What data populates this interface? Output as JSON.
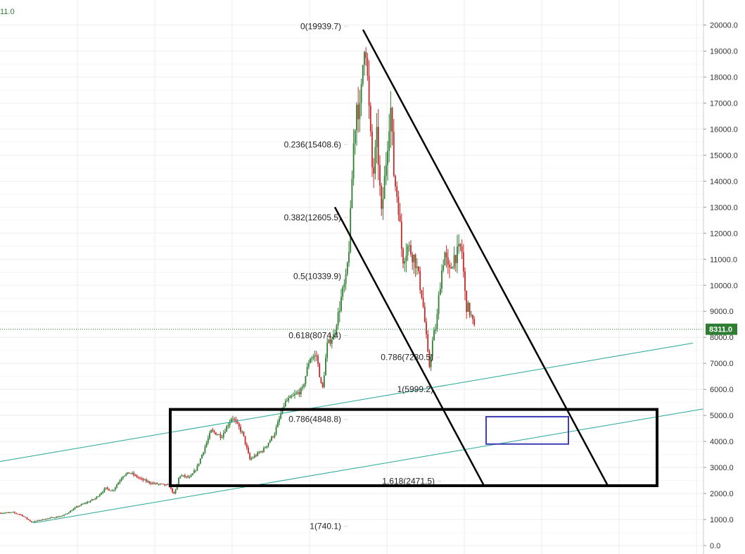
{
  "header": {
    "corner_value": "11.0"
  },
  "chart_data": {
    "type": "candlestick",
    "ylim": [
      0,
      20300
    ],
    "y_ticks": [
      "0.0",
      "1000.0",
      "2000.0",
      "3000.0",
      "4000.0",
      "5000.0",
      "6000.0",
      "7000.0",
      "8000.0",
      "9000.0",
      "10000.0",
      "11000.0",
      "12000.0",
      "13000.0",
      "14000.0",
      "15000.0",
      "16000.0",
      "17000.0",
      "18000.0",
      "19000.0",
      "20000.0"
    ],
    "current_price": {
      "value": 8311,
      "label": "8311.0"
    },
    "fib_levels": [
      {
        "label": "0(19939.7)",
        "price": 19939.7
      },
      {
        "label": "0.236(15408.6)",
        "price": 15408.6
      },
      {
        "label": "0.382(12605.5)",
        "price": 12605.5
      },
      {
        "label": "0.5(10339.9)",
        "price": 10339.9
      },
      {
        "label": "0.618(8074.4)",
        "price": 8074.4
      },
      {
        "label": "0.786(4848.8)",
        "price": 4848.8
      },
      {
        "label": "1(740.1)",
        "price": 740.1
      }
    ],
    "fib_extensions": [
      {
        "label": "0.786(7230.5)",
        "price": 7230.5
      },
      {
        "label": "1(5999.2)",
        "price": 5999.2
      },
      {
        "label": "1.618(2471.5)",
        "price": 2471.5
      }
    ],
    "colors": {
      "up": "#2e7d32",
      "down": "#c62828",
      "channel": "#26a69a",
      "trendline": "#000000",
      "target_box": "#3f3fb5",
      "price_tag": "#2e7d32"
    }
  }
}
